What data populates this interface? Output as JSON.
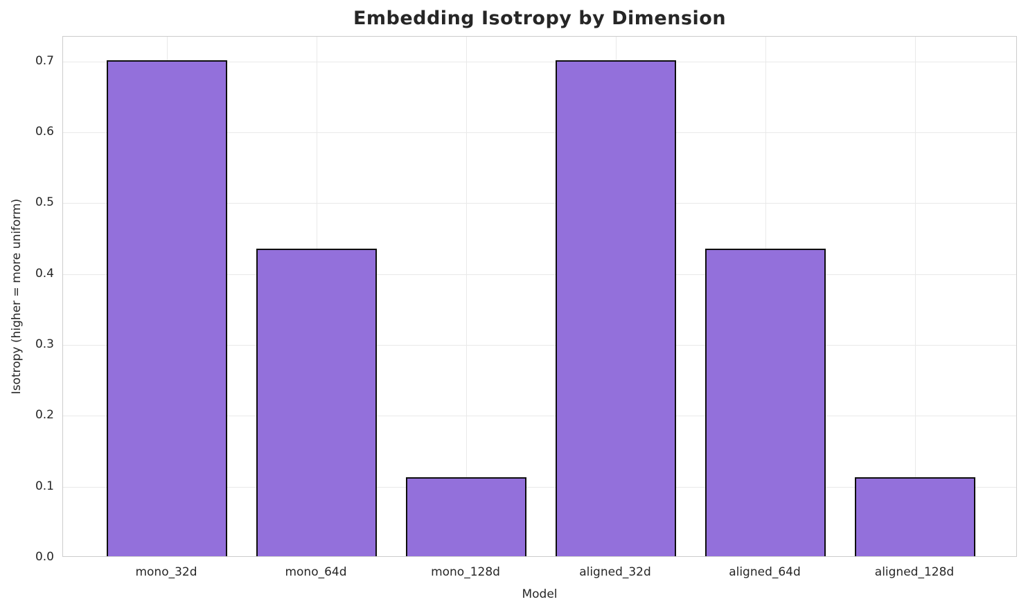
{
  "title": "Embedding Isotropy by Dimension",
  "chart_data": {
    "type": "bar",
    "title": "Embedding Isotropy by Dimension",
    "categories": [
      "mono_32d",
      "mono_64d",
      "mono_128d",
      "aligned_32d",
      "aligned_64d",
      "aligned_128d"
    ],
    "values": [
      0.7,
      0.434,
      0.111,
      0.7,
      0.434,
      0.111
    ],
    "xlabel": "Model",
    "ylabel": "Isotropy (higher = more uniform)",
    "ylim": [
      0,
      0.735
    ],
    "yticks": [
      "0.0",
      "0.1",
      "0.2",
      "0.3",
      "0.4",
      "0.5",
      "0.6",
      "0.7"
    ],
    "grid": true,
    "legend": "none",
    "bar_color": "#9370DB",
    "bar_edge_color": "#0d0d0d",
    "grid_color": "#e9e9e9",
    "spine_color": "#cccccc",
    "text_color": "#262626",
    "background_color": "#ffffff"
  }
}
